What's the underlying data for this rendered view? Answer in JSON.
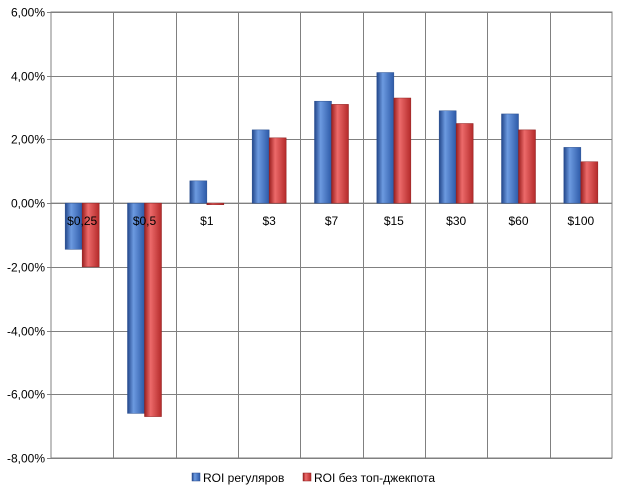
{
  "chart_data": {
    "type": "bar",
    "title": "",
    "xlabel": "",
    "ylabel": "",
    "categories": [
      "$0,25",
      "$0,5",
      "$1",
      "$3",
      "$7",
      "$15",
      "$30",
      "$60",
      "$100"
    ],
    "series": [
      {
        "name": "ROI регуляров",
        "color": "#3a6fc4",
        "values": [
          -1.45,
          -6.6,
          0.7,
          2.3,
          3.2,
          4.1,
          2.9,
          2.8,
          1.75
        ]
      },
      {
        "name": "ROI без топ-джекпота",
        "color": "#d13b3b",
        "values": [
          -2.0,
          -6.7,
          -0.05,
          2.05,
          3.1,
          3.3,
          2.5,
          2.3,
          1.3
        ]
      }
    ],
    "ylim": [
      -8,
      6
    ],
    "yticks": [
      6,
      4,
      2,
      0,
      -2,
      -4,
      -6,
      -8
    ],
    "ytick_labels": [
      "6,00%",
      "4,00%",
      "2,00%",
      "0,00%",
      "-2,00%",
      "-4,00%",
      "-6,00%",
      "-8,00%"
    ],
    "grid": true,
    "legend_position": "bottom"
  }
}
